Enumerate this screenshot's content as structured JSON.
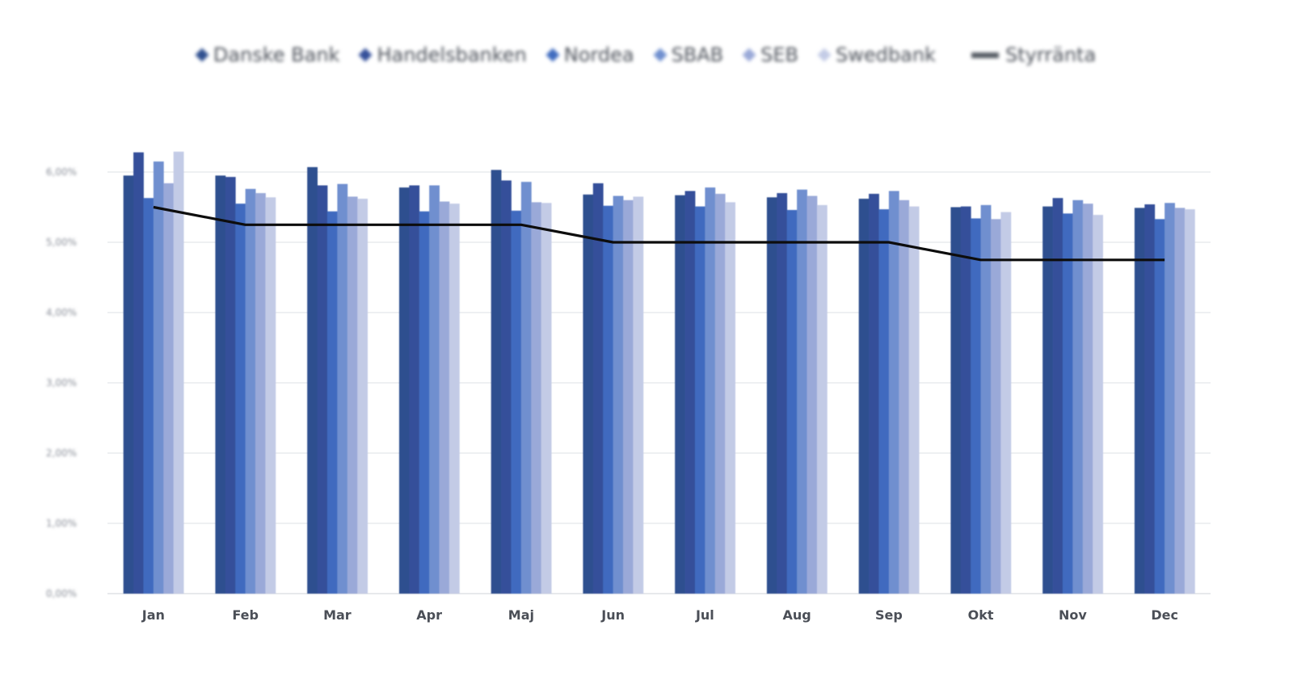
{
  "chart_data": {
    "type": "bar",
    "categories": [
      "Jan",
      "Feb",
      "Mar",
      "Apr",
      "Maj",
      "Jun",
      "Jul",
      "Aug",
      "Sep",
      "Okt",
      "Nov",
      "Dec"
    ],
    "series": [
      {
        "name": "Danske Bank",
        "color": "#2f4f8f",
        "values": [
          5.95,
          5.95,
          6.07,
          5.78,
          6.03,
          5.68,
          5.67,
          5.64,
          5.62,
          5.5,
          5.51,
          5.49
        ]
      },
      {
        "name": "Handelsbanken",
        "color": "#34509a",
        "values": [
          6.28,
          5.93,
          5.81,
          5.81,
          5.88,
          5.84,
          5.73,
          5.7,
          5.69,
          5.51,
          5.63,
          5.54
        ]
      },
      {
        "name": "Nordea",
        "color": "#3f6bbf",
        "values": [
          5.63,
          5.55,
          5.44,
          5.44,
          5.45,
          5.52,
          5.51,
          5.46,
          5.47,
          5.34,
          5.41,
          5.33
        ]
      },
      {
        "name": "SBAB",
        "color": "#6f8fcf",
        "values": [
          6.15,
          5.76,
          5.83,
          5.81,
          5.86,
          5.66,
          5.78,
          5.75,
          5.73,
          5.53,
          5.6,
          5.56
        ]
      },
      {
        "name": "SEB",
        "color": "#9aa9d8",
        "values": [
          5.84,
          5.7,
          5.65,
          5.58,
          5.57,
          5.6,
          5.69,
          5.66,
          5.6,
          5.33,
          5.55,
          5.49
        ]
      },
      {
        "name": "Swedbank",
        "color": "#c3cbe6",
        "values": [
          6.29,
          5.64,
          5.62,
          5.55,
          5.56,
          5.65,
          5.57,
          5.53,
          5.51,
          5.43,
          5.39,
          5.47
        ]
      }
    ],
    "line_series": {
      "name": "Styrränta",
      "color": "#0d0d0d",
      "values": [
        5.5,
        5.25,
        5.25,
        5.25,
        5.25,
        5.0,
        5.0,
        5.0,
        5.0,
        4.75,
        4.75,
        4.75
      ]
    },
    "yticks": [
      "0,00%",
      "1,00%",
      "2,00%",
      "3,00%",
      "4,00%",
      "5,00%",
      "6,00%"
    ],
    "ylim": [
      0,
      7
    ],
    "grid": true,
    "legend_position": "top",
    "title": "",
    "xlabel": "",
    "ylabel": ""
  }
}
